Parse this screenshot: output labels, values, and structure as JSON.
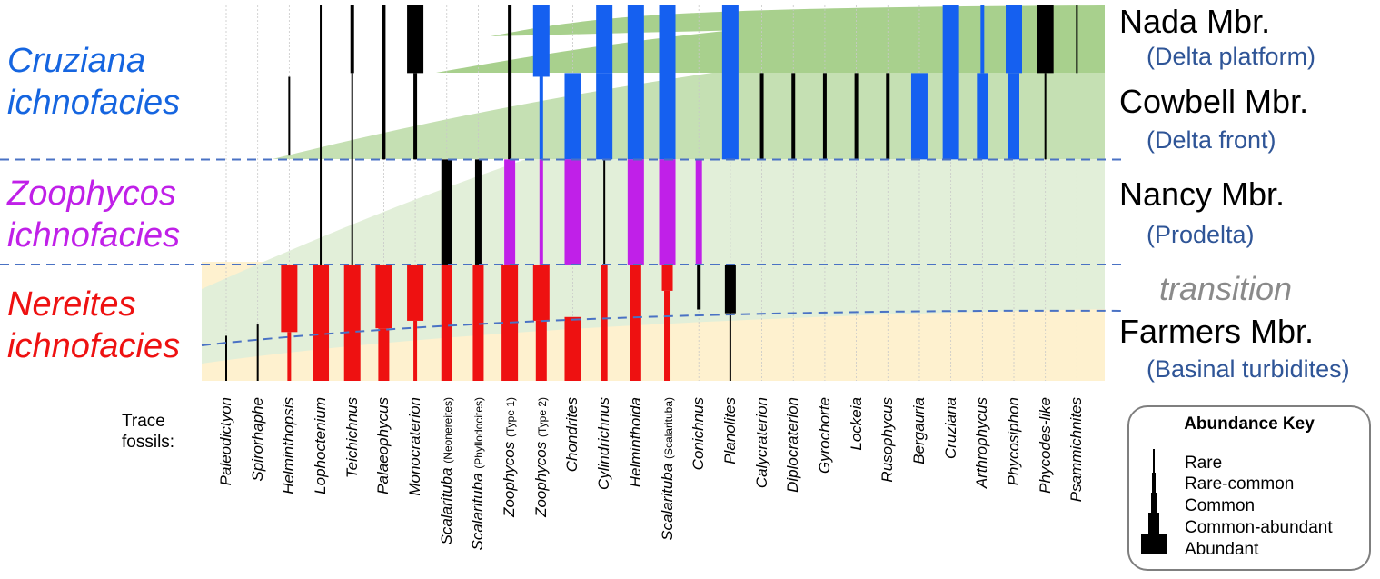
{
  "facies": [
    {
      "id": "cruziana",
      "words": [
        "Cruziana",
        "ichnofacies"
      ],
      "color": "#1565e0"
    },
    {
      "id": "zoophycos",
      "words": [
        "Zoophycos",
        "ichnofacies"
      ],
      "color": "#c020e8"
    },
    {
      "id": "nereites",
      "words": [
        "Nereites",
        "ichnofacies"
      ],
      "color": "#ee1111"
    }
  ],
  "members": [
    {
      "name": "Nada Mbr.",
      "environment": "(Delta platform)"
    },
    {
      "name": "Cowbell Mbr.",
      "environment": "(Delta front)"
    },
    {
      "name": "Nancy Mbr.",
      "environment": "(Prodelta)"
    },
    {
      "name": "Farmers Mbr.",
      "environment": "(Basinal turbidites)"
    }
  ],
  "transition_label": "transition",
  "trace_label": "Trace fossils:",
  "abundance_scale": [
    "Rare",
    "Rare-common",
    "Common",
    "Common-abundant",
    "Abundant"
  ],
  "abundance_key": {
    "title": "Abundance Key",
    "levels": [
      "Rare",
      "Rare-common",
      "Common",
      "Common-abundant",
      "Abundant"
    ]
  },
  "zone_colors": {
    "Nereites": "#ee1111",
    "Zoophycos": "#c020e8",
    "Cruziana": "#1560f0",
    "none": "#000000"
  },
  "taxa": [
    {
      "name": "Paleodictyon",
      "suffix": "",
      "segments": [
        {
          "from": 0.88,
          "to": 1.0,
          "abundance": 1,
          "zone": "none"
        }
      ]
    },
    {
      "name": "Spirorhaphe",
      "suffix": "",
      "segments": [
        {
          "from": 0.85,
          "to": 1.0,
          "abundance": 1,
          "zone": "none"
        }
      ]
    },
    {
      "name": "Helminthopsis",
      "suffix": "",
      "segments": [
        {
          "from": 0.19,
          "to": 0.4,
          "abundance": 1,
          "zone": "none"
        },
        {
          "from": 0.69,
          "to": 0.87,
          "abundance": 5,
          "zone": "Nereites"
        },
        {
          "from": 0.87,
          "to": 1.0,
          "abundance": 2,
          "zone": "Nereites"
        }
      ]
    },
    {
      "name": "Lophoctenium",
      "suffix": "",
      "segments": [
        {
          "from": 0.0,
          "to": 0.69,
          "abundance": 1,
          "zone": "none"
        },
        {
          "from": 0.69,
          "to": 1.0,
          "abundance": 5,
          "zone": "Nereites"
        }
      ]
    },
    {
      "name": "Teichichnus",
      "suffix": "",
      "segments": [
        {
          "from": 0.0,
          "to": 0.18,
          "abundance": 2,
          "zone": "none"
        },
        {
          "from": 0.18,
          "to": 0.69,
          "abundance": 1,
          "zone": "none"
        },
        {
          "from": 0.69,
          "to": 1.0,
          "abundance": 5,
          "zone": "Nereites"
        }
      ]
    },
    {
      "name": "Palaeophycus",
      "suffix": "",
      "segments": [
        {
          "from": 0.0,
          "to": 0.41,
          "abundance": 2,
          "zone": "none"
        },
        {
          "from": 0.69,
          "to": 0.86,
          "abundance": 5,
          "zone": "Nereites"
        },
        {
          "from": 0.86,
          "to": 1.0,
          "abundance": 4,
          "zone": "Nereites"
        }
      ]
    },
    {
      "name": "Monocraterion",
      "suffix": "",
      "segments": [
        {
          "from": 0.0,
          "to": 0.18,
          "abundance": 5,
          "zone": "none"
        },
        {
          "from": 0.18,
          "to": 0.41,
          "abundance": 2,
          "zone": "none"
        },
        {
          "from": 0.69,
          "to": 0.84,
          "abundance": 5,
          "zone": "Nereites"
        },
        {
          "from": 0.84,
          "to": 1.0,
          "abundance": 2,
          "zone": "Nereites"
        }
      ]
    },
    {
      "name": "Scalarituba",
      "suffix": "(Neonereites)",
      "segments": [
        {
          "from": 0.41,
          "to": 0.69,
          "abundance": 4,
          "zone": "none"
        },
        {
          "from": 0.69,
          "to": 1.0,
          "abundance": 4,
          "zone": "Nereites"
        }
      ]
    },
    {
      "name": "Scalarituba",
      "suffix": "(Phyllodocites)",
      "segments": [
        {
          "from": 0.41,
          "to": 0.69,
          "abundance": 3,
          "zone": "none"
        },
        {
          "from": 0.69,
          "to": 1.0,
          "abundance": 4,
          "zone": "Nereites"
        }
      ]
    },
    {
      "name": "Zoophycos",
      "suffix": "(Type 1)",
      "segments": [
        {
          "from": 0.0,
          "to": 0.41,
          "abundance": 2,
          "zone": "none"
        },
        {
          "from": 0.41,
          "to": 0.69,
          "abundance": 4,
          "zone": "Zoophycos"
        },
        {
          "from": 0.69,
          "to": 1.0,
          "abundance": 5,
          "zone": "Nereites"
        }
      ]
    },
    {
      "name": "Zoophycos",
      "suffix": "(Type 2)",
      "segments": [
        {
          "from": 0.0,
          "to": 0.19,
          "abundance": 5,
          "zone": "Cruziana"
        },
        {
          "from": 0.19,
          "to": 0.41,
          "abundance": 2,
          "zone": "Cruziana"
        },
        {
          "from": 0.41,
          "to": 0.69,
          "abundance": 2,
          "zone": "Zoophycos"
        },
        {
          "from": 0.69,
          "to": 0.84,
          "abundance": 5,
          "zone": "Nereites"
        },
        {
          "from": 0.84,
          "to": 1.0,
          "abundance": 4,
          "zone": "Nereites"
        }
      ]
    },
    {
      "name": "Chondrites",
      "suffix": "",
      "segments": [
        {
          "from": 0.18,
          "to": 0.41,
          "abundance": 5,
          "zone": "Cruziana"
        },
        {
          "from": 0.41,
          "to": 0.69,
          "abundance": 5,
          "zone": "Zoophycos"
        },
        {
          "from": 0.83,
          "to": 1.0,
          "abundance": 5,
          "zone": "Nereites"
        }
      ]
    },
    {
      "name": "Cylindrichnus",
      "suffix": "",
      "segments": [
        {
          "from": 0.0,
          "to": 0.18,
          "abundance": 5,
          "zone": "Cruziana"
        },
        {
          "from": 0.18,
          "to": 0.41,
          "abundance": 5,
          "zone": "Cruziana"
        },
        {
          "from": 0.41,
          "to": 0.69,
          "abundance": 1,
          "zone": "none"
        },
        {
          "from": 0.69,
          "to": 1.0,
          "abundance": 3,
          "zone": "Nereites"
        }
      ]
    },
    {
      "name": "Helminthoida",
      "suffix": "",
      "segments": [
        {
          "from": 0.0,
          "to": 0.41,
          "abundance": 5,
          "zone": "Cruziana"
        },
        {
          "from": 0.41,
          "to": 0.69,
          "abundance": 5,
          "zone": "Zoophycos"
        },
        {
          "from": 0.69,
          "to": 1.0,
          "abundance": 4,
          "zone": "Nereites"
        }
      ]
    },
    {
      "name": "Scalarituba",
      "suffix": "(Scalarituba)",
      "segments": [
        {
          "from": 0.0,
          "to": 0.41,
          "abundance": 5,
          "zone": "Cruziana"
        },
        {
          "from": 0.41,
          "to": 0.69,
          "abundance": 5,
          "zone": "Zoophycos"
        },
        {
          "from": 0.69,
          "to": 0.76,
          "abundance": 4,
          "zone": "Nereites"
        },
        {
          "from": 0.76,
          "to": 1.0,
          "abundance": 3,
          "zone": "Nereites"
        }
      ]
    },
    {
      "name": "Conichnus",
      "suffix": "",
      "segments": [
        {
          "from": 0.41,
          "to": 0.69,
          "abundance": 3,
          "zone": "Zoophycos"
        },
        {
          "from": 0.69,
          "to": 0.81,
          "abundance": 2,
          "zone": "none"
        }
      ]
    },
    {
      "name": "Planolites",
      "suffix": "",
      "segments": [
        {
          "from": 0.0,
          "to": 0.41,
          "abundance": 5,
          "zone": "Cruziana"
        },
        {
          "from": 0.69,
          "to": 0.82,
          "abundance": 4,
          "zone": "none"
        },
        {
          "from": 0.82,
          "to": 1.0,
          "abundance": 1,
          "zone": "none"
        }
      ]
    },
    {
      "name": "Calycraterion",
      "suffix": "",
      "segments": [
        {
          "from": 0.18,
          "to": 0.41,
          "abundance": 2,
          "zone": "none"
        }
      ]
    },
    {
      "name": "Diplocraterion",
      "suffix": "",
      "segments": [
        {
          "from": 0.18,
          "to": 0.41,
          "abundance": 2,
          "zone": "none"
        }
      ]
    },
    {
      "name": "Gyrochorte",
      "suffix": "",
      "segments": [
        {
          "from": 0.18,
          "to": 0.41,
          "abundance": 2,
          "zone": "none"
        }
      ]
    },
    {
      "name": "Lockeia",
      "suffix": "",
      "segments": [
        {
          "from": 0.18,
          "to": 0.41,
          "abundance": 2,
          "zone": "none"
        }
      ]
    },
    {
      "name": "Rusophycus",
      "suffix": "",
      "segments": [
        {
          "from": 0.18,
          "to": 0.41,
          "abundance": 2,
          "zone": "none"
        }
      ]
    },
    {
      "name": "Bergauria",
      "suffix": "",
      "segments": [
        {
          "from": 0.18,
          "to": 0.41,
          "abundance": 5,
          "zone": "Cruziana"
        }
      ]
    },
    {
      "name": "Cruziana",
      "suffix": "",
      "segments": [
        {
          "from": 0.0,
          "to": 0.41,
          "abundance": 5,
          "zone": "Cruziana"
        }
      ]
    },
    {
      "name": "Arthrophycus",
      "suffix": "",
      "segments": [
        {
          "from": 0.0,
          "to": 0.18,
          "abundance": 2,
          "zone": "Cruziana"
        },
        {
          "from": 0.18,
          "to": 0.41,
          "abundance": 4,
          "zone": "Cruziana"
        }
      ]
    },
    {
      "name": "Phycosiphon",
      "suffix": "",
      "segments": [
        {
          "from": 0.0,
          "to": 0.18,
          "abundance": 5,
          "zone": "Cruziana"
        },
        {
          "from": 0.18,
          "to": 0.41,
          "abundance": 4,
          "zone": "Cruziana"
        }
      ]
    },
    {
      "name": "Phycodes-like",
      "suffix": "",
      "segments": [
        {
          "from": 0.0,
          "to": 0.18,
          "abundance": 5,
          "zone": "none"
        },
        {
          "from": 0.18,
          "to": 0.41,
          "abundance": 1,
          "zone": "none"
        }
      ]
    },
    {
      "name": "Psammichnites",
      "suffix": "",
      "segments": [
        {
          "from": 0.0,
          "to": 0.18,
          "abundance": 1,
          "zone": "none"
        }
      ]
    }
  ]
}
